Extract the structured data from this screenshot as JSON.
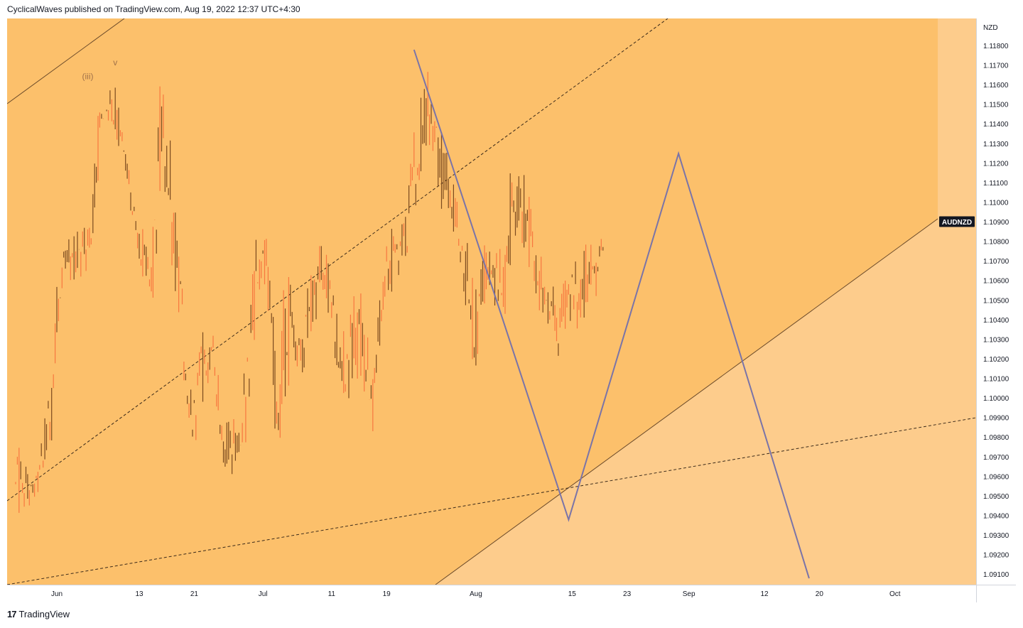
{
  "header": {
    "publisher_line": "CyclicalWaves published on TradingView.com, Aug 19, 2022 12:37 UTC+4:30"
  },
  "footer": {
    "brand": "TradingView",
    "logo_glyph": "17"
  },
  "colors": {
    "channel_fill": "#fcc06b",
    "outer_fill": "#fdcc8c",
    "candle_up": "#f7773f",
    "candle_down": "#7b4a1f",
    "projection": "#7a74a8",
    "channel_line": "#6b4a2a",
    "symbol_bg": "#131722"
  },
  "chart_data": {
    "type": "candlestick",
    "symbol": "AUDNZD",
    "currency": "NZD",
    "ylim": [
      1.0908,
      1.1193
    ],
    "price_ticks": [
      "1.11800",
      "1.11700",
      "1.11600",
      "1.11500",
      "1.11400",
      "1.11300",
      "1.11200",
      "1.11100",
      "1.11000",
      "1.10900",
      "1.10800",
      "1.10700",
      "1.10600",
      "1.10500",
      "1.10400",
      "1.10300",
      "1.10200",
      "1.10100",
      "1.10000",
      "1.09900",
      "1.09800",
      "1.09700",
      "1.09600",
      "1.09500",
      "1.09400",
      "1.09300",
      "1.09200",
      "1.09100"
    ],
    "date_ticks": [
      "Jun",
      "13",
      "21",
      "Jul",
      "11",
      "19",
      "Aug",
      "15",
      "23",
      "Sep",
      "12",
      "20",
      "Oct"
    ],
    "date_tick_days": [
      0,
      12,
      20,
      30,
      40,
      48,
      61,
      75,
      83,
      92,
      103,
      111,
      122
    ],
    "last_price": 1.109,
    "wave_labels": [
      {
        "text": "(iii)",
        "day": 4.5,
        "price": 1.1163
      },
      {
        "text": "v",
        "day": 8.5,
        "price": 1.117
      }
    ],
    "projection_path": [
      {
        "day": 52,
        "price": 1.1178
      },
      {
        "day": 74.5,
        "price": 1.0938
      },
      {
        "day": 90.5,
        "price": 1.1125
      },
      {
        "day": 109.5,
        "price": 1.0908
      }
    ],
    "daily_ranges": [
      {
        "day": -6,
        "low": 1.0928,
        "high": 1.0985
      },
      {
        "day": -5,
        "low": 1.0936,
        "high": 1.0972
      },
      {
        "day": -4,
        "low": 1.0938,
        "high": 1.0965
      },
      {
        "day": -3,
        "low": 1.0944,
        "high": 1.0968
      },
      {
        "day": -2,
        "low": 1.095,
        "high": 1.099
      },
      {
        "day": -1,
        "low": 1.0962,
        "high": 1.1028
      },
      {
        "day": 0,
        "low": 1.1,
        "high": 1.1072
      },
      {
        "day": 1,
        "low": 1.1048,
        "high": 1.1085
      },
      {
        "day": 2,
        "low": 1.1055,
        "high": 1.108
      },
      {
        "day": 3,
        "low": 1.1058,
        "high": 1.1088
      },
      {
        "day": 4,
        "low": 1.106,
        "high": 1.109
      },
      {
        "day": 5,
        "low": 1.1068,
        "high": 1.1095
      },
      {
        "day": 6,
        "low": 1.11,
        "high": 1.1165
      },
      {
        "day": 7,
        "low": 1.114,
        "high": 1.1162
      },
      {
        "day": 8,
        "low": 1.1135,
        "high": 1.1163
      },
      {
        "day": 9,
        "low": 1.112,
        "high": 1.1155
      },
      {
        "day": 10,
        "low": 1.1105,
        "high": 1.114
      },
      {
        "day": 11,
        "low": 1.108,
        "high": 1.111
      },
      {
        "day": 12,
        "low": 1.106,
        "high": 1.1095
      },
      {
        "day": 13,
        "low": 1.1045,
        "high": 1.108
      },
      {
        "day": 14,
        "low": 1.1035,
        "high": 1.1095
      },
      {
        "day": 15,
        "low": 1.108,
        "high": 1.1168
      },
      {
        "day": 16,
        "low": 1.109,
        "high": 1.1162
      },
      {
        "day": 17,
        "low": 1.105,
        "high": 1.111
      },
      {
        "day": 18,
        "low": 1.103,
        "high": 1.108
      },
      {
        "day": 19,
        "low": 1.0965,
        "high": 1.1012
      },
      {
        "day": 20,
        "low": 1.097,
        "high": 1.1015
      },
      {
        "day": 21,
        "low": 1.0985,
        "high": 1.104
      },
      {
        "day": 22,
        "low": 1.1,
        "high": 1.1045
      },
      {
        "day": 23,
        "low": 1.1,
        "high": 1.1035
      },
      {
        "day": 24,
        "low": 1.0965,
        "high": 1.0995
      },
      {
        "day": 25,
        "low": 1.0955,
        "high": 1.099
      },
      {
        "day": 26,
        "low": 1.096,
        "high": 1.0995
      },
      {
        "day": 27,
        "low": 1.0965,
        "high": 1.1
      },
      {
        "day": 28,
        "low": 1.097,
        "high": 1.108
      },
      {
        "day": 29,
        "low": 1.104,
        "high": 1.1085
      },
      {
        "day": 30,
        "low": 1.1045,
        "high": 1.109
      },
      {
        "day": 31,
        "low": 1.1035,
        "high": 1.1075
      },
      {
        "day": 32,
        "low": 1.096,
        "high": 1.102
      },
      {
        "day": 33,
        "low": 1.0965,
        "high": 1.106
      },
      {
        "day": 34,
        "low": 1.101,
        "high": 1.1065
      },
      {
        "day": 35,
        "low": 1.1005,
        "high": 1.104
      },
      {
        "day": 36,
        "low": 1.101,
        "high": 1.105
      },
      {
        "day": 37,
        "low": 1.102,
        "high": 1.107
      },
      {
        "day": 38,
        "low": 1.104,
        "high": 1.1085
      },
      {
        "day": 39,
        "low": 1.104,
        "high": 1.108
      },
      {
        "day": 40,
        "low": 1.103,
        "high": 1.1065
      },
      {
        "day": 41,
        "low": 1.0995,
        "high": 1.104
      },
      {
        "day": 42,
        "low": 1.099,
        "high": 1.1035
      },
      {
        "day": 43,
        "low": 1.1,
        "high": 1.105
      },
      {
        "day": 44,
        "low": 1.1,
        "high": 1.106
      },
      {
        "day": 45,
        "low": 1.098,
        "high": 1.104
      },
      {
        "day": 46,
        "low": 1.0975,
        "high": 1.102
      },
      {
        "day": 47,
        "low": 1.102,
        "high": 1.1065
      },
      {
        "day": 48,
        "low": 1.104,
        "high": 1.1085
      },
      {
        "day": 49,
        "low": 1.105,
        "high": 1.109
      },
      {
        "day": 50,
        "low": 1.106,
        "high": 1.1095
      },
      {
        "day": 51,
        "low": 1.1065,
        "high": 1.1105
      },
      {
        "day": 52,
        "low": 1.109,
        "high": 1.1145
      },
      {
        "day": 53,
        "low": 1.11,
        "high": 1.116
      },
      {
        "day": 54,
        "low": 1.112,
        "high": 1.118
      },
      {
        "day": 55,
        "low": 1.111,
        "high": 1.116
      },
      {
        "day": 56,
        "low": 1.109,
        "high": 1.114
      },
      {
        "day": 57,
        "low": 1.108,
        "high": 1.1125
      },
      {
        "day": 58,
        "low": 1.107,
        "high": 1.111
      },
      {
        "day": 59,
        "low": 1.106,
        "high": 1.11
      },
      {
        "day": 60,
        "low": 1.102,
        "high": 1.108
      },
      {
        "day": 61,
        "low": 1.1,
        "high": 1.106
      },
      {
        "day": 62,
        "low": 1.104,
        "high": 1.109
      },
      {
        "day": 63,
        "low": 1.105,
        "high": 1.1085
      },
      {
        "day": 64,
        "low": 1.104,
        "high": 1.108
      },
      {
        "day": 65,
        "low": 1.103,
        "high": 1.1075
      },
      {
        "day": 66,
        "low": 1.106,
        "high": 1.1125
      },
      {
        "day": 67,
        "low": 1.108,
        "high": 1.1122
      },
      {
        "day": 68,
        "low": 1.107,
        "high": 1.1118
      },
      {
        "day": 69,
        "low": 1.105,
        "high": 1.1098
      },
      {
        "day": 70,
        "low": 1.104,
        "high": 1.108
      },
      {
        "day": 71,
        "low": 1.103,
        "high": 1.1068
      },
      {
        "day": 72,
        "low": 1.102,
        "high": 1.106
      },
      {
        "day": 73,
        "low": 1.1015,
        "high": 1.1055
      },
      {
        "day": 74,
        "low": 1.103,
        "high": 1.107
      },
      {
        "day": 75,
        "low": 1.1035,
        "high": 1.108
      },
      {
        "day": 76,
        "low": 1.102,
        "high": 1.107
      },
      {
        "day": 77,
        "low": 1.104,
        "high": 1.108
      },
      {
        "day": 78,
        "low": 1.104,
        "high": 1.1085
      },
      {
        "day": 79,
        "low": 1.105,
        "high": 1.1092
      }
    ]
  }
}
